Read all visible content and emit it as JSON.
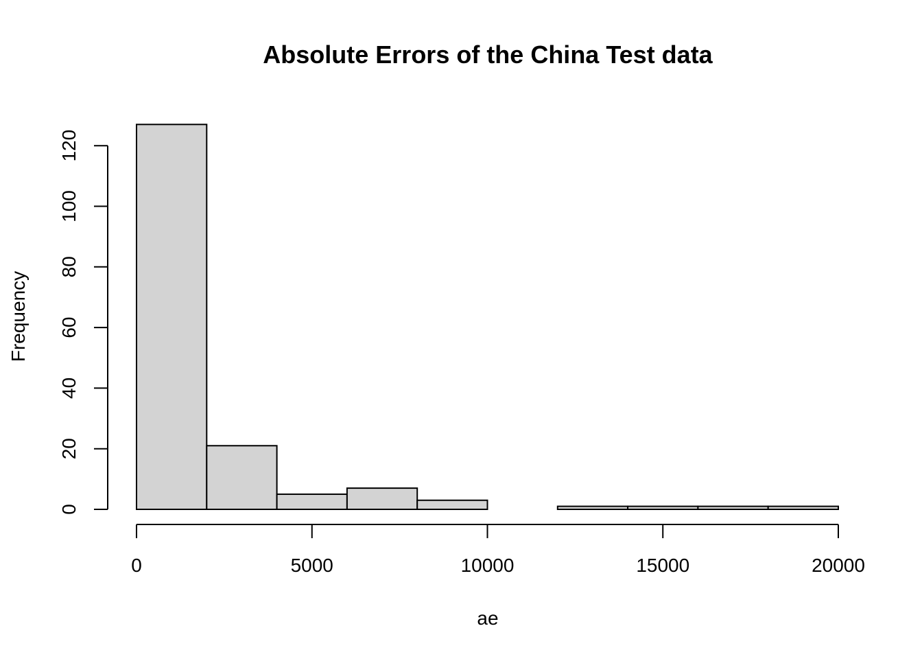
{
  "chart_data": {
    "type": "bar",
    "title": "Absolute Errors of the China Test data",
    "xlabel": "ae",
    "ylabel": "Frequency",
    "xlim": [
      0,
      20000
    ],
    "ylim": [
      0,
      127
    ],
    "x_ticks": [
      0,
      5000,
      10000,
      15000,
      20000
    ],
    "x_tick_labels": [
      "0",
      "5000",
      "10000",
      "15000",
      "20000"
    ],
    "y_ticks": [
      0,
      20,
      40,
      60,
      80,
      100,
      120
    ],
    "y_tick_labels": [
      "0",
      "20",
      "40",
      "60",
      "80",
      "100",
      "120"
    ],
    "bins": [
      {
        "start": 0,
        "end": 2000,
        "count": 127
      },
      {
        "start": 2000,
        "end": 4000,
        "count": 21
      },
      {
        "start": 4000,
        "end": 6000,
        "count": 5
      },
      {
        "start": 6000,
        "end": 8000,
        "count": 7
      },
      {
        "start": 8000,
        "end": 10000,
        "count": 3
      },
      {
        "start": 10000,
        "end": 12000,
        "count": 0
      },
      {
        "start": 12000,
        "end": 14000,
        "count": 1
      },
      {
        "start": 14000,
        "end": 16000,
        "count": 1
      },
      {
        "start": 16000,
        "end": 18000,
        "count": 1
      },
      {
        "start": 18000,
        "end": 20000,
        "count": 1
      }
    ],
    "bar_color": "#d3d3d3",
    "grid": false
  }
}
